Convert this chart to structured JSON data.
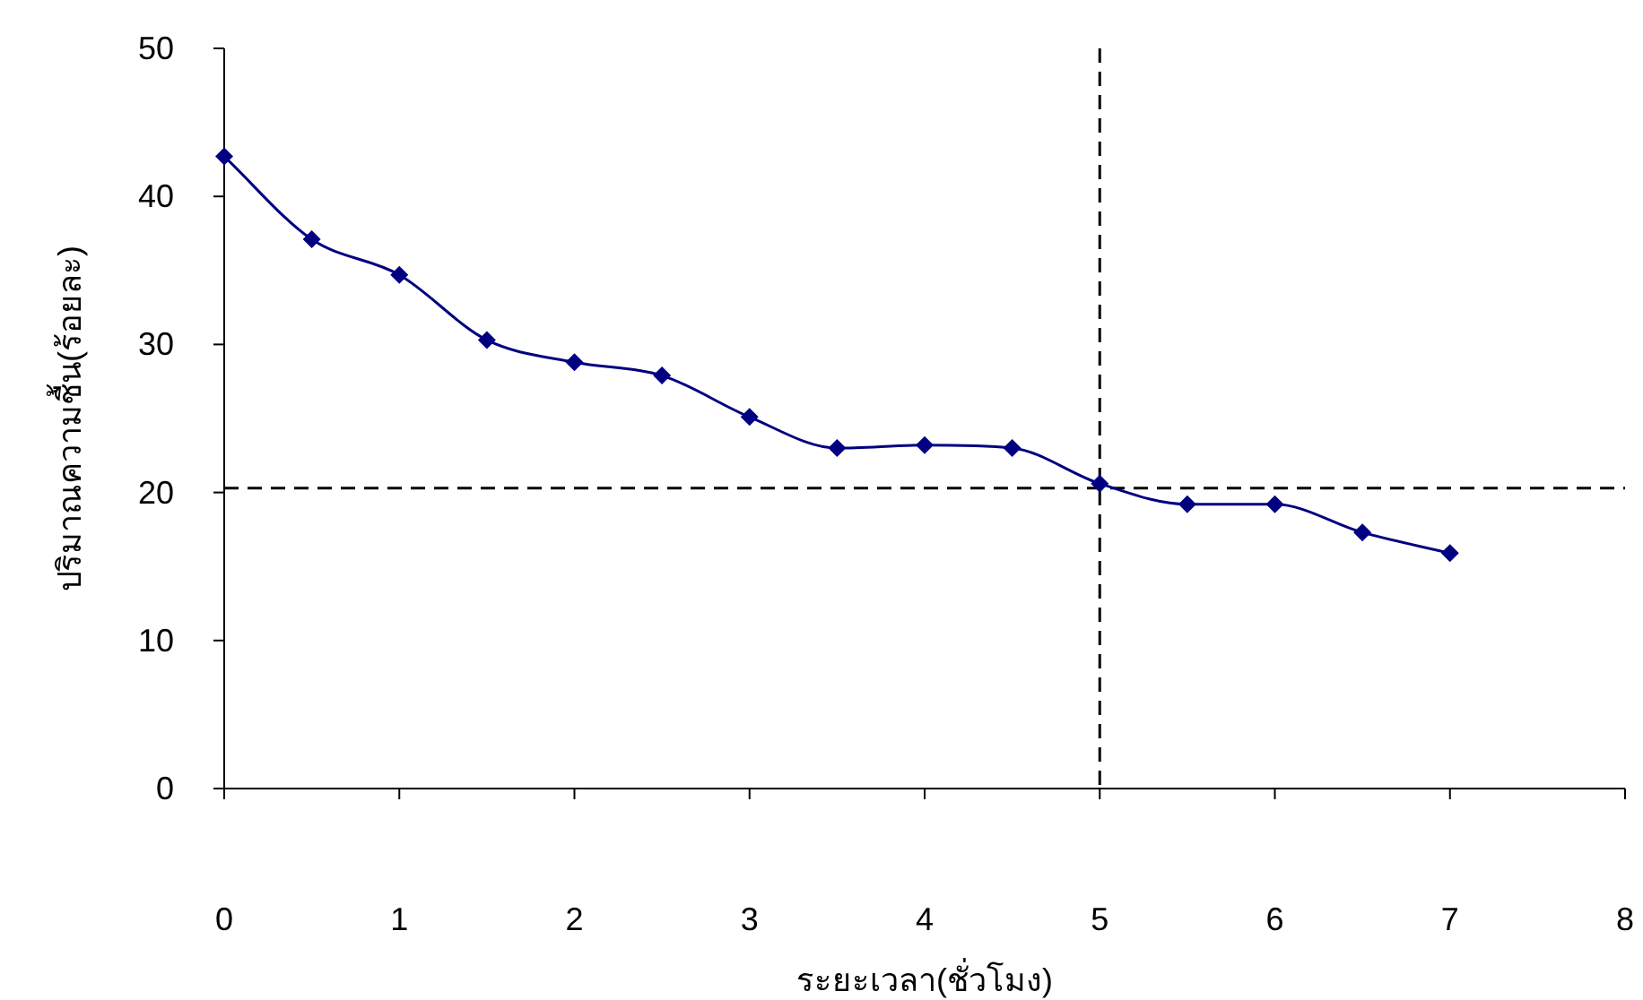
{
  "chart_data": {
    "type": "line",
    "xlabel": "ระยะเวลา(ชั่วโมง)",
    "ylabel": "ปริมาณความชื้น(ร้อยละ)",
    "x": [
      0,
      0.5,
      1,
      1.5,
      2,
      2.5,
      3,
      3.5,
      4,
      4.5,
      5,
      5.5,
      6,
      6.5,
      7
    ],
    "series": [
      {
        "color": "#000080",
        "values": [
          42.7,
          37.1,
          34.7,
          30.3,
          28.8,
          27.9,
          25.1,
          23.0,
          23.2,
          23.0,
          20.6,
          19.2,
          19.2,
          17.3,
          15.9
        ]
      }
    ],
    "xlim": [
      0,
      8
    ],
    "xticks": [
      0,
      1,
      2,
      3,
      4,
      5,
      6,
      7,
      8
    ],
    "ylim": [
      0,
      50
    ],
    "yticks": [
      0,
      10,
      20,
      30,
      40,
      50
    ],
    "marker": "diamond",
    "line_style": "solid",
    "ref_lines": [
      {
        "axis": "y",
        "value": 20.3,
        "line_style": "dashed",
        "color": "#000000"
      },
      {
        "axis": "x",
        "value": 5,
        "line_style": "dashed",
        "color": "#000000"
      }
    ]
  }
}
